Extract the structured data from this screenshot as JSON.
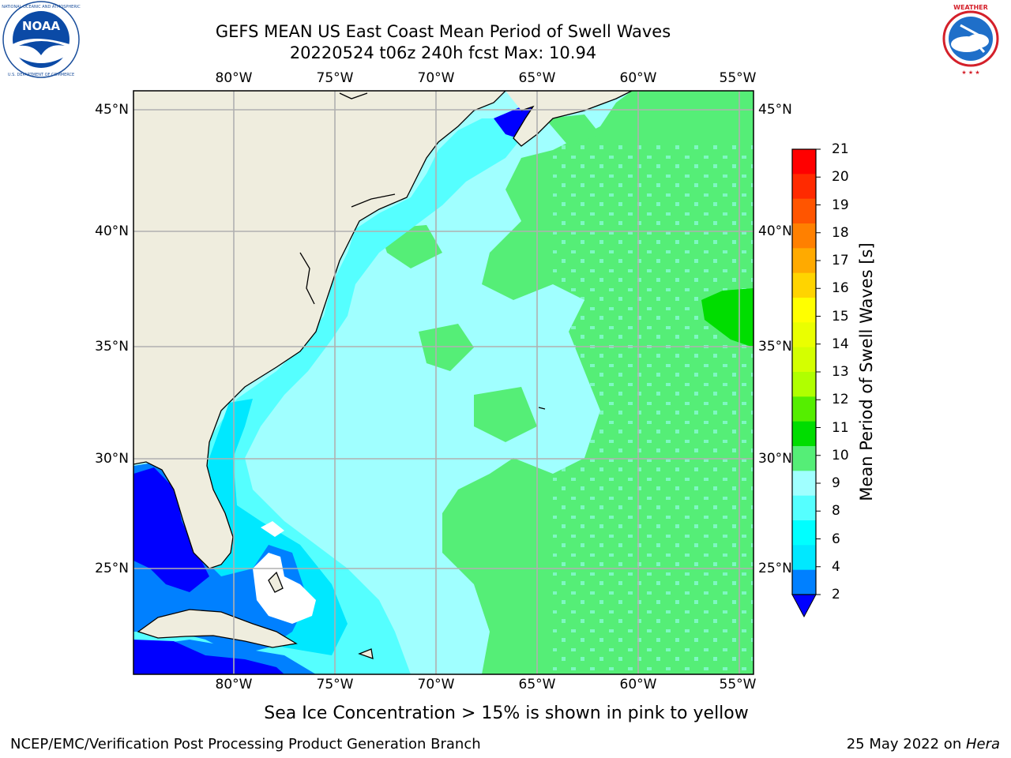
{
  "header": {
    "title_line1": "GEFS MEAN US East Coast Mean Period of Swell Waves",
    "title_line2": "20220524 t06z 240h fcst   Max: 10.94"
  },
  "logos": {
    "left": {
      "name": "NOAA",
      "ring_text": "NATIONAL OCEANIC AND ATMOSPHERIC ADMINISTRATION · U.S. DEPARTMENT OF COMMERCE"
    },
    "right": {
      "name": "National Weather Service",
      "ring_text": "NATIONAL WEATHER SERVICE"
    }
  },
  "map": {
    "lon_labels": [
      "80°W",
      "75°W",
      "70°W",
      "65°W",
      "60°W",
      "55°W"
    ],
    "lat_labels": [
      "45°N",
      "40°N",
      "35°N",
      "30°N",
      "25°N"
    ],
    "colors": {
      "land": "#efedde",
      "grid": "#b0b0b0",
      "coast": "#000000",
      "ice_mask": "#ffffff"
    }
  },
  "colorbar": {
    "title": "Mean Period of Swell Waves [s]",
    "ticks": [
      "21",
      "20",
      "19",
      "18",
      "17",
      "16",
      "15",
      "14",
      "13",
      "12",
      "11",
      "10",
      "9",
      "8",
      "6",
      "4",
      "2"
    ],
    "segment_colors": [
      "#ff0000",
      "#ff2a00",
      "#ff5500",
      "#ff8000",
      "#ffaa00",
      "#ffd400",
      "#ffff00",
      "#eaff00",
      "#d4ff00",
      "#b0ff00",
      "#55ee00",
      "#00dd00",
      "#55ee77",
      "#a0ffff",
      "#55ffff",
      "#00ffff",
      "#00e8ff",
      "#0080ff"
    ],
    "under_color": "#0000ff"
  },
  "footer": {
    "note": "Sea Ice Concentration > 15% is shown in pink to yellow",
    "credit": "NCEP/EMC/Verification Post Processing Product Generation Branch",
    "date_prefix": "25 May 2022 on ",
    "machine": "Hera"
  }
}
